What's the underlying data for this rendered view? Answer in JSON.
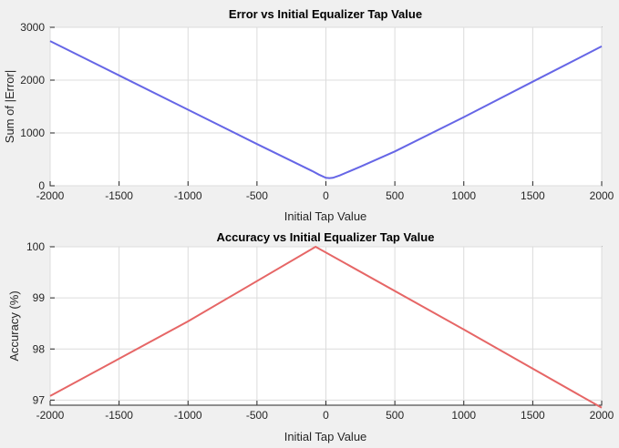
{
  "chart_data": [
    {
      "type": "line",
      "title": "Error vs Initial Equalizer Tap Value",
      "xlabel": "Initial Tap Value",
      "ylabel": "Sum of |Error|",
      "xlim": [
        -2000,
        2000
      ],
      "ylim": [
        0,
        3000
      ],
      "xticks": [
        -2000,
        -1500,
        -1000,
        -500,
        0,
        500,
        1000,
        1500,
        2000
      ],
      "yticks": [
        0,
        1000,
        2000,
        3000
      ],
      "grid": true,
      "color": "#6666e6",
      "series": [
        {
          "x": [
            -2000,
            -1500,
            -1000,
            -500,
            -250,
            -100,
            -50,
            0,
            25,
            50,
            100,
            250,
            500,
            1000,
            1500,
            2000
          ],
          "y": [
            2740,
            2090,
            1440,
            790,
            470,
            280,
            210,
            150,
            145,
            150,
            195,
            360,
            650,
            1300,
            1970,
            2640
          ]
        }
      ]
    },
    {
      "type": "line",
      "title": "Accuracy vs Initial Equalizer Tap Value",
      "xlabel": "Initial Tap Value",
      "ylabel": "Accuracy (%)",
      "xlim": [
        -2000,
        2000
      ],
      "ylim": [
        96.9,
        100
      ],
      "xticks": [
        -2000,
        -1500,
        -1000,
        -500,
        0,
        500,
        1000,
        1500,
        2000
      ],
      "yticks": [
        97,
        98,
        99,
        100
      ],
      "grid": true,
      "color": "#e66666",
      "series": [
        {
          "x": [
            -2000,
            -1000,
            -75,
            1000,
            2000
          ],
          "y": [
            97.08,
            98.54,
            100,
            98.38,
            96.85
          ]
        }
      ]
    }
  ]
}
